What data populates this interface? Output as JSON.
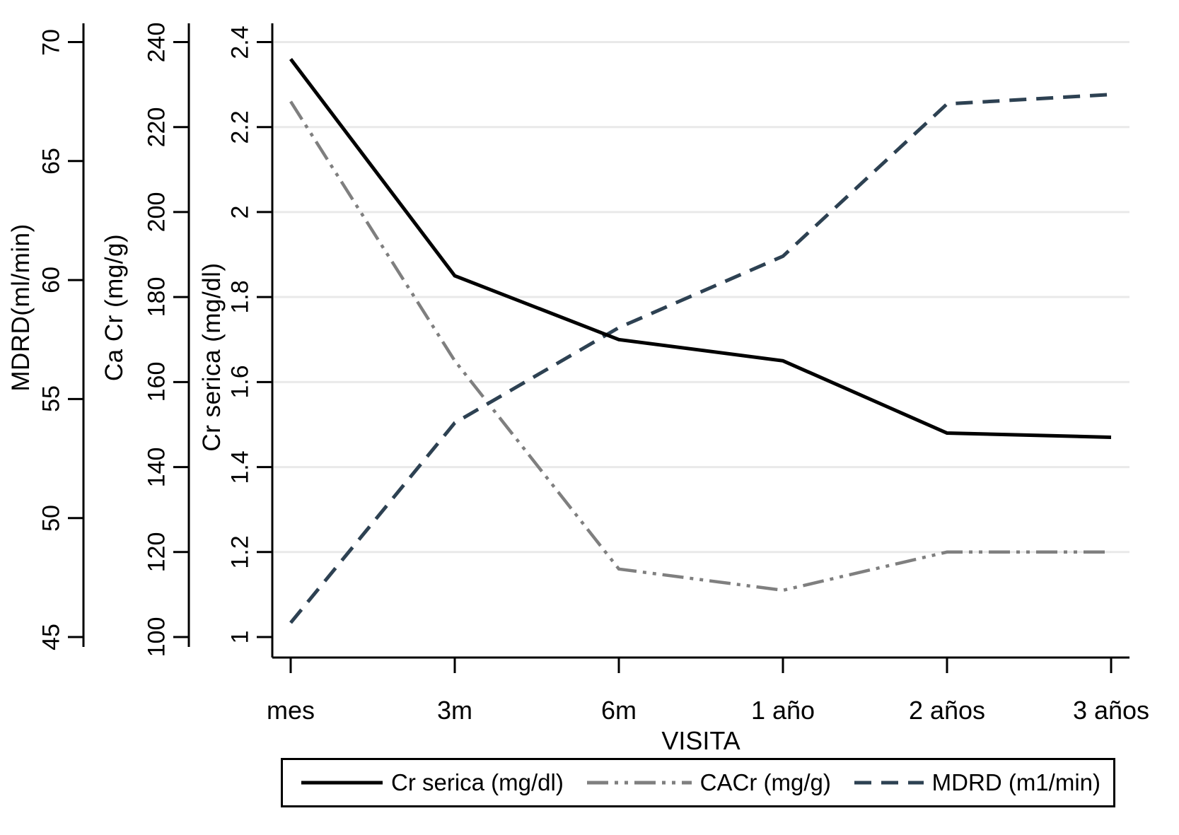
{
  "chart_data": {
    "type": "line",
    "title": "",
    "x_axis": {
      "label": "VISITA",
      "categories": [
        "mes",
        "3m",
        "6m",
        "1 año",
        "2 años",
        "3 años"
      ]
    },
    "y_axes": [
      {
        "title": "MDRD(ml/min)",
        "ticks": [
          70,
          65,
          60,
          55,
          50,
          45
        ],
        "range": [
          45,
          70
        ]
      },
      {
        "title": "Ca Cr (mg/g)",
        "ticks": [
          240,
          220,
          200,
          180,
          160,
          140,
          120,
          100
        ],
        "range": [
          100,
          240
        ]
      },
      {
        "title": "Cr serica (mg/dl)",
        "ticks": [
          2.4,
          2.2,
          2,
          1.8,
          1.6,
          1.4,
          1.2,
          1
        ],
        "range": [
          1,
          2.4
        ]
      }
    ],
    "series": [
      {
        "name": "Cr serica (mg/dl)",
        "axis": "Cr serica (mg/dl)",
        "axis_index": 2,
        "values": [
          2.36,
          1.85,
          1.7,
          1.65,
          1.48,
          1.47
        ],
        "color": "#000000",
        "style": "solid",
        "width": 5
      },
      {
        "name": "CACr (mg/g)",
        "axis": "Ca Cr (mg/g)",
        "axis_index": 1,
        "values": [
          226,
          165,
          116,
          111,
          120,
          120
        ],
        "color": "#7f7f7f",
        "style": "dash-dot-dot",
        "width": 4.5
      },
      {
        "name": "MDRD (m1/min)",
        "axis": "MDRD(ml/min)",
        "axis_index": 0,
        "values": [
          45.6,
          54,
          58,
          61,
          67.4,
          67.8
        ],
        "color": "#2d4152",
        "style": "dash",
        "width": 5
      }
    ],
    "legend": {
      "position": "bottom",
      "entries": [
        "Cr serica (mg/dl)",
        "CACr (mg/g)",
        "MDRD (m1/min)"
      ]
    },
    "grid": true,
    "gridline_values_on_cr_axis": [
      1.2,
      1.4,
      1.6,
      1.8,
      2,
      2.2,
      2.4
    ],
    "gridline_color": "#e9e9e9",
    "axis_color": "#000000",
    "background": "#ffffff"
  }
}
